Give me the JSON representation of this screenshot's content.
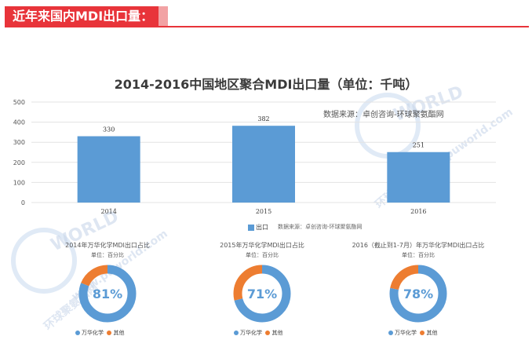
{
  "header": {
    "title": "近年来国内MDI出口量："
  },
  "chart_data": [
    {
      "type": "bar",
      "title": "2014-2016中国地区聚合MDI出口量（单位：千吨）",
      "source": "数据来源：卓创咨询-环球聚氨酯网",
      "categories": [
        "2014",
        "2015",
        "2016"
      ],
      "series": [
        {
          "name": "出口",
          "values": [
            330,
            382,
            251
          ],
          "color": "#5b9bd5"
        }
      ],
      "ylim": [
        0,
        500
      ],
      "yticks": [
        0,
        100,
        200,
        300,
        400,
        500
      ],
      "grid": true,
      "legend": "bottom",
      "footer_source": "数据来源：卓创咨询-环球聚氨酯网"
    },
    {
      "type": "pie",
      "title": "2014年万华化学MDI出口占比",
      "unit": "单位：百分比",
      "labels": [
        "万华化学",
        "其他"
      ],
      "values": [
        81,
        19
      ],
      "center_label": "81%",
      "colors": [
        "#5b9bd5",
        "#ed7d31"
      ]
    },
    {
      "type": "pie",
      "title": "2015年万华化学MDI出口占比",
      "unit": "单位：百分比",
      "labels": [
        "万华化学",
        "其他"
      ],
      "values": [
        71,
        29
      ],
      "center_label": "71%",
      "colors": [
        "#5b9bd5",
        "#ed7d31"
      ]
    },
    {
      "type": "pie",
      "title": "2016（截止到1-7月）年万华化学MDI出口占比",
      "unit": "单位：百分比",
      "labels": [
        "万华化学",
        "其他"
      ],
      "values": [
        78,
        22
      ],
      "center_label": "78%",
      "colors": [
        "#5b9bd5",
        "#ed7d31"
      ]
    }
  ],
  "watermark": {
    "brand": "WORLD",
    "site": "www.puworld.com",
    "cn": "环球聚氨酯网"
  }
}
